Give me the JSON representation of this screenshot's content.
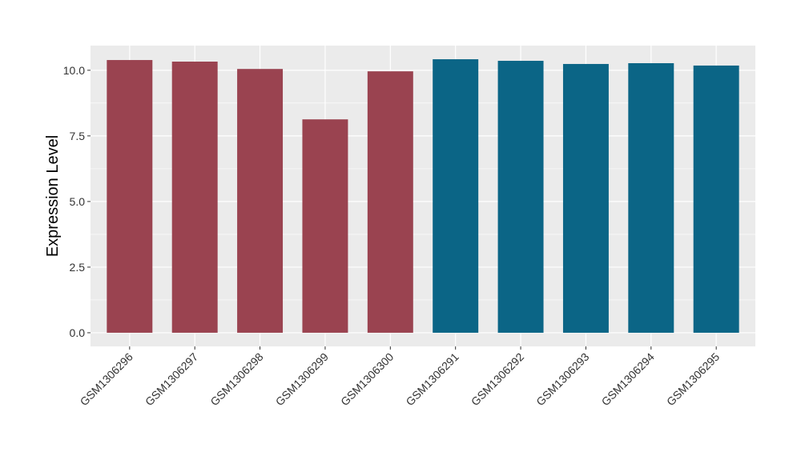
{
  "chart_data": {
    "type": "bar",
    "title": "",
    "xlabel": "",
    "ylabel": "Expression Level",
    "categories": [
      "GSM1306296",
      "GSM1306297",
      "GSM1306298",
      "GSM1306299",
      "GSM1306300",
      "GSM1306291",
      "GSM1306292",
      "GSM1306293",
      "GSM1306294",
      "GSM1306295"
    ],
    "values": [
      10.39,
      10.33,
      10.05,
      8.13,
      9.96,
      10.42,
      10.36,
      10.24,
      10.27,
      10.18
    ],
    "bar_colors": [
      "#9a4350",
      "#9a4350",
      "#9a4350",
      "#9a4350",
      "#9a4350",
      "#0b6586",
      "#0b6586",
      "#0b6586",
      "#0b6586",
      "#0b6586"
    ],
    "ylim": [
      -0.52,
      10.94
    ],
    "yticks": [
      0,
      2.5,
      5,
      7.5,
      10
    ],
    "ytick_labels": [
      "0.0",
      "2.5",
      "5.0",
      "7.5",
      "10.0"
    ],
    "grid": true,
    "panel_background": "#ebebeb",
    "legend": "none"
  }
}
